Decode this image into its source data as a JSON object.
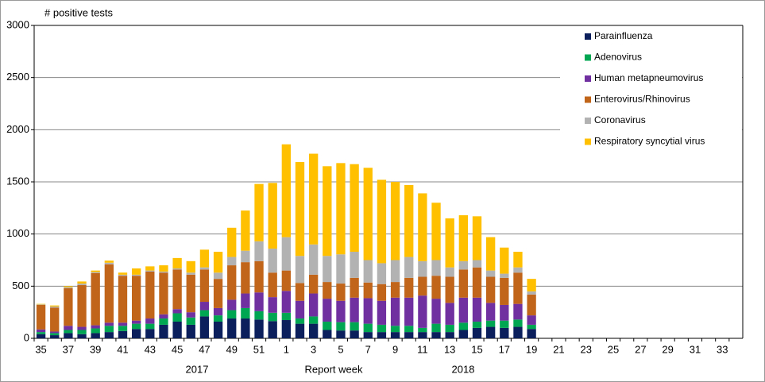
{
  "chart_data": {
    "type": "stacked-bar",
    "title": "# positive tests",
    "x_label": "Report week",
    "year_labels": [
      "2017",
      "2018"
    ],
    "categories": [
      "35",
      null,
      "37",
      null,
      "39",
      null,
      "41",
      null,
      "43",
      null,
      "45",
      null,
      "47",
      null,
      "49",
      null,
      "51",
      null,
      "1",
      null,
      "3",
      null,
      "5",
      null,
      "7",
      null,
      "9",
      null,
      "11",
      null,
      "13",
      null,
      "15",
      null,
      "17",
      null,
      "19",
      null,
      "21",
      null,
      "23",
      null,
      "25",
      null,
      "27",
      null,
      "29",
      null,
      "31",
      null,
      "33",
      null
    ],
    "series": [
      {
        "name": "Parainfluenza",
        "color": "#0b1f5c",
        "values": [
          40,
          30,
          50,
          40,
          50,
          60,
          70,
          90,
          90,
          130,
          160,
          130,
          210,
          160,
          190,
          190,
          180,
          165,
          175,
          140,
          140,
          80,
          75,
          75,
          60,
          60,
          60,
          60,
          60,
          60,
          60,
          80,
          100,
          110,
          100,
          110,
          90,
          null,
          null,
          null,
          null,
          null,
          null,
          null,
          null,
          null,
          null,
          null,
          null,
          null,
          null,
          null
        ]
      },
      {
        "name": "Adenovirus",
        "color": "#00a651",
        "values": [
          20,
          20,
          30,
          40,
          45,
          60,
          50,
          50,
          50,
          60,
          80,
          70,
          60,
          60,
          80,
          100,
          80,
          80,
          70,
          50,
          70,
          80,
          80,
          80,
          80,
          70,
          60,
          60,
          40,
          80,
          70,
          70,
          60,
          60,
          70,
          70,
          40,
          null,
          null,
          null,
          null,
          null,
          null,
          null,
          null,
          null,
          null,
          null,
          null,
          null,
          null,
          null
        ]
      },
      {
        "name": "Human metapneumovirus",
        "color": "#7030a0",
        "values": [
          25,
          15,
          40,
          30,
          30,
          30,
          30,
          30,
          50,
          40,
          40,
          50,
          80,
          70,
          100,
          140,
          180,
          150,
          210,
          170,
          220,
          220,
          205,
          235,
          245,
          230,
          270,
          270,
          310,
          240,
          210,
          240,
          230,
          170,
          150,
          150,
          90,
          null,
          null,
          null,
          null,
          null,
          null,
          null,
          null,
          null,
          null,
          null,
          null,
          null,
          null,
          null
        ]
      },
      {
        "name": "Enterovirus/Rhinovirus",
        "color": "#c0651a",
        "values": [
          235,
          230,
          360,
          400,
          500,
          560,
          450,
          430,
          450,
          400,
          380,
          360,
          310,
          280,
          330,
          300,
          300,
          235,
          195,
          170,
          180,
          160,
          165,
          190,
          150,
          160,
          150,
          190,
          180,
          220,
          250,
          270,
          290,
          250,
          260,
          300,
          200,
          null,
          null,
          null,
          null,
          null,
          null,
          null,
          null,
          null,
          null,
          null,
          null,
          null,
          null,
          null
        ]
      },
      {
        "name": "Coronavirus",
        "color": "#b2b2b2",
        "values": [
          5,
          10,
          10,
          15,
          10,
          15,
          10,
          10,
          10,
          10,
          10,
          20,
          20,
          60,
          80,
          110,
          190,
          230,
          320,
          260,
          290,
          250,
          280,
          250,
          215,
          200,
          210,
          200,
          150,
          150,
          90,
          80,
          70,
          60,
          40,
          50,
          30,
          null,
          null,
          null,
          null,
          null,
          null,
          null,
          null,
          null,
          null,
          null,
          null,
          null,
          null,
          null
        ]
      },
      {
        "name": "Respiratory syncytial virus",
        "color": "#ffc000",
        "values": [
          5,
          10,
          10,
          20,
          15,
          20,
          20,
          60,
          40,
          60,
          100,
          110,
          170,
          200,
          280,
          385,
          550,
          630,
          890,
          900,
          870,
          860,
          875,
          840,
          885,
          800,
          750,
          690,
          650,
          550,
          470,
          440,
          420,
          320,
          250,
          150,
          120,
          null,
          null,
          null,
          null,
          null,
          null,
          null,
          null,
          null,
          null,
          null,
          null,
          null,
          null,
          null
        ]
      }
    ],
    "ylim": [
      0,
      3000
    ],
    "yticks": [
      0,
      500,
      1000,
      1500,
      2000,
      2500,
      3000
    ],
    "grid": true,
    "legend": "upper right"
  }
}
